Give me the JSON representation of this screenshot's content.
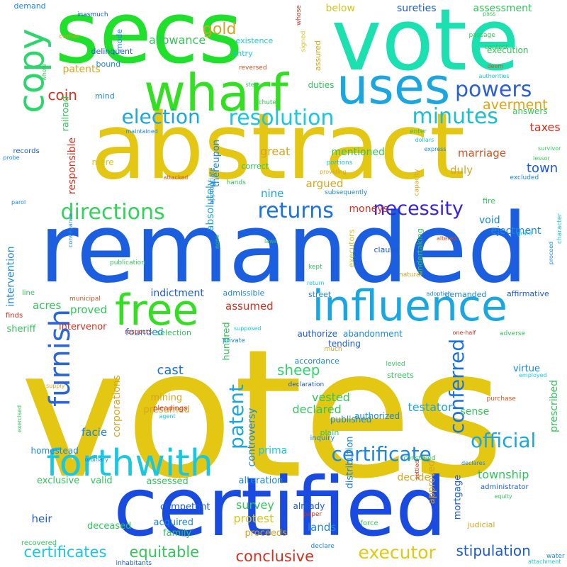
{
  "words": [
    {
      "text": "votes",
      "color": "#e3c713",
      "vertical": false
    },
    {
      "text": "remanded",
      "color": "#1b5fe0",
      "vertical": false
    },
    {
      "text": "abstract",
      "color": "#e3c713",
      "vertical": false
    },
    {
      "text": "certified",
      "color": "#1a4be0",
      "vertical": false
    },
    {
      "text": "vote",
      "color": "#1be0b0",
      "vertical": false
    },
    {
      "text": "secs",
      "color": "#1fe02a",
      "vertical": false
    },
    {
      "text": "wharf",
      "color": "#33e021",
      "vertical": false
    },
    {
      "text": "uses",
      "color": "#1aa6e0",
      "vertical": false
    },
    {
      "text": "influence",
      "color": "#1aa6e0",
      "vertical": false
    },
    {
      "text": "forthwith",
      "color": "#18c7e0",
      "vertical": false
    },
    {
      "text": "free",
      "color": "#33e021",
      "vertical": false
    },
    {
      "text": "copy",
      "color": "#2dd66b",
      "vertical": true
    },
    {
      "text": "furnish",
      "color": "#2a66d8",
      "vertical": true
    },
    {
      "text": "powers",
      "color": "#2a5fd6",
      "vertical": false
    },
    {
      "text": "election",
      "color": "#1aa6e0",
      "vertical": false
    },
    {
      "text": "resolution",
      "color": "#18c7e0",
      "vertical": false
    },
    {
      "text": "minutes",
      "color": "#1ac0ce",
      "vertical": false
    },
    {
      "text": "directions",
      "color": "#33d35a",
      "vertical": false
    },
    {
      "text": "returns",
      "color": "#1a72e0",
      "vertical": false
    },
    {
      "text": "necessity",
      "color": "#3a22d6",
      "vertical": false
    },
    {
      "text": "certificate",
      "color": "#1a86e0",
      "vertical": false
    },
    {
      "text": "conferred",
      "color": "#1a72e0",
      "vertical": true
    },
    {
      "text": "patent",
      "color": "#1aa6e0",
      "vertical": true
    },
    {
      "text": "official",
      "color": "#1aa6e0",
      "vertical": false
    },
    {
      "text": "executor",
      "color": "#e3c713",
      "vertical": false
    },
    {
      "text": "certificates",
      "color": "#18c7e0",
      "vertical": false
    },
    {
      "text": "conclusive",
      "color": "#d62f1e",
      "vertical": false
    },
    {
      "text": "stipulation",
      "color": "#1a5ad6",
      "vertical": false
    },
    {
      "text": "equitable",
      "color": "#33c45a",
      "vertical": false
    },
    {
      "text": "sheep",
      "color": "#2dd66b",
      "vertical": false
    },
    {
      "text": "cast",
      "color": "#1a72e0",
      "vertical": false
    },
    {
      "text": "gold",
      "color": "#d6a51e",
      "vertical": false
    },
    {
      "text": "coin",
      "color": "#d62f1e",
      "vertical": false
    },
    {
      "text": "averment",
      "color": "#e3a313",
      "vertical": false
    },
    {
      "text": "town",
      "color": "#1a5ad6",
      "vertical": false
    },
    {
      "text": "taxes",
      "color": "#d62f1e",
      "vertical": false
    },
    {
      "text": "marriage",
      "color": "#d6521e",
      "vertical": false
    },
    {
      "text": "allowance",
      "color": "#33c45a",
      "vertical": false
    },
    {
      "text": "patents",
      "color": "#d6a51e",
      "vertical": false
    },
    {
      "text": "great",
      "color": "#d6a51e",
      "vertical": false
    },
    {
      "text": "duly",
      "color": "#d6a51e",
      "vertical": false
    },
    {
      "text": "argued",
      "color": "#d6a51e",
      "vertical": false
    },
    {
      "text": "nine",
      "color": "#1aa6e0",
      "vertical": false
    },
    {
      "text": "mentioned",
      "color": "#33c45a",
      "vertical": false
    },
    {
      "text": "indictment",
      "color": "#1a5ad6",
      "vertical": false
    },
    {
      "text": "acres",
      "color": "#33c45a",
      "vertical": false
    },
    {
      "text": "proved",
      "color": "#33c45a",
      "vertical": false
    },
    {
      "text": "assumed",
      "color": "#d62f1e",
      "vertical": false
    },
    {
      "text": "moneys",
      "color": "#d62f1e",
      "vertical": false
    },
    {
      "text": "void",
      "color": "#1a86e0",
      "vertical": false
    },
    {
      "text": "ejectment",
      "color": "#1a86e0",
      "vertical": false
    },
    {
      "text": "township",
      "color": "#2dc45a",
      "vertical": false
    },
    {
      "text": "testator",
      "color": "#1aa6e0",
      "vertical": false
    },
    {
      "text": "declared",
      "color": "#33c45a",
      "vertical": false
    },
    {
      "text": "vested",
      "color": "#33c45a",
      "vertical": false
    },
    {
      "text": "survey",
      "color": "#33c45a",
      "vertical": false
    },
    {
      "text": "protest",
      "color": "#d6c51e",
      "vertical": false
    },
    {
      "text": "lands",
      "color": "#1a86e0",
      "vertical": false
    },
    {
      "text": "heir",
      "color": "#1a5ad6",
      "vertical": false
    },
    {
      "text": "facie",
      "color": "#1a86e0",
      "vertical": false
    },
    {
      "text": "prima",
      "color": "#18c7e0",
      "vertical": false
    },
    {
      "text": "decide",
      "color": "#d6a51e",
      "vertical": false
    },
    {
      "text": "exclusive",
      "color": "#33c45a",
      "vertical": false
    },
    {
      "text": "assessed",
      "color": "#33c45a",
      "vertical": false
    },
    {
      "text": "acquired",
      "color": "#1a86e0",
      "vertical": false
    },
    {
      "text": "proceeds",
      "color": "#d6a51e",
      "vertical": false
    },
    {
      "text": "family",
      "color": "#33c45a",
      "vertical": false
    },
    {
      "text": "sense",
      "color": "#33c45a",
      "vertical": false
    },
    {
      "text": "prescribed",
      "color": "#33c45a",
      "vertical": true
    },
    {
      "text": "controversy",
      "color": "#1a86e0",
      "vertical": true
    },
    {
      "text": "intervention",
      "color": "#1a86e0",
      "vertical": true
    },
    {
      "text": "responsible",
      "color": "#d62f1e",
      "vertical": true
    },
    {
      "text": "absolutely",
      "color": "#1aa6e0",
      "vertical": true
    },
    {
      "text": "corporations",
      "color": "#d6a51e",
      "vertical": true
    },
    {
      "text": "distribution",
      "color": "#1a86e0",
      "vertical": true
    },
    {
      "text": "approved",
      "color": "#d6a51e",
      "vertical": true
    },
    {
      "text": "hundred",
      "color": "#33c45a",
      "vertical": true
    },
    {
      "text": "mining",
      "color": "#d6a51e",
      "vertical": false
    },
    {
      "text": "presumed",
      "color": "#d6a51e",
      "vertical": false
    },
    {
      "text": "authorize",
      "color": "#1a5ad6",
      "vertical": false
    },
    {
      "text": "abandonment",
      "color": "#1a86e0",
      "vertical": false
    },
    {
      "text": "published",
      "color": "#1a86e0",
      "vertical": false
    },
    {
      "text": "authorized",
      "color": "#1a86e0",
      "vertical": false
    },
    {
      "text": "virtue",
      "color": "#1a86e0",
      "vertical": false
    },
    {
      "text": "sureties",
      "color": "#1a5ad6",
      "vertical": false
    },
    {
      "text": "assessment",
      "color": "#33c45a",
      "vertical": false
    },
    {
      "text": "below",
      "color": "#d6c51e",
      "vertical": false
    },
    {
      "text": "execution",
      "color": "#33c45a",
      "vertical": false
    },
    {
      "text": "answers",
      "color": "#33c45a",
      "vertical": false
    },
    {
      "text": "duties",
      "color": "#33c45a",
      "vertical": false
    },
    {
      "text": "existence",
      "color": "#18c7e0",
      "vertical": false
    },
    {
      "text": "entry",
      "color": "#18c7e0",
      "vertical": false
    },
    {
      "text": "demand",
      "color": "#1a86e0",
      "vertical": false
    },
    {
      "text": "inasmuch",
      "color": "#1a5ad6",
      "vertical": false
    },
    {
      "text": "corner",
      "color": "#d6a51e",
      "vertical": false
    },
    {
      "text": "railroad",
      "color": "#33c45a",
      "vertical": true
    },
    {
      "text": "delinquent",
      "color": "#1a5ad6",
      "vertical": false
    },
    {
      "text": "bound",
      "color": "#1a86e0",
      "vertical": false
    },
    {
      "text": "mind",
      "color": "#1a86e0",
      "vertical": false
    },
    {
      "text": "mode",
      "color": "#1a86e0",
      "vertical": true
    },
    {
      "text": "whose",
      "color": "#d62f1e",
      "vertical": true
    },
    {
      "text": "signed",
      "color": "#d6c51e",
      "vertical": true
    },
    {
      "text": "assured",
      "color": "#d6a51e",
      "vertical": true
    },
    {
      "text": "pass",
      "color": "#33c45a",
      "vertical": false
    },
    {
      "text": "passage",
      "color": "#33c45a",
      "vertical": false
    },
    {
      "text": "contest",
      "color": "#33c45a",
      "vertical": false
    },
    {
      "text": "deem",
      "color": "#d6521e",
      "vertical": false
    },
    {
      "text": "authorities",
      "color": "#18c7e0",
      "vertical": false
    },
    {
      "text": "reversed",
      "color": "#d6521e",
      "vertical": false
    },
    {
      "text": "steps",
      "color": "#33c45a",
      "vertical": false
    },
    {
      "text": "chute",
      "color": "#33c45a",
      "vertical": false
    },
    {
      "text": "whole",
      "color": "#33c45a",
      "vertical": true
    },
    {
      "text": "maintained",
      "color": "#1a86e0",
      "vertical": false
    },
    {
      "text": "records",
      "color": "#1a5ad6",
      "vertical": false
    },
    {
      "text": "probe",
      "color": "#1a86e0",
      "vertical": false
    },
    {
      "text": "express",
      "color": "#1a86e0",
      "vertical": false
    },
    {
      "text": "mere",
      "color": "#d6c51e",
      "vertical": false
    },
    {
      "text": "thereupon",
      "color": "#1a86e0",
      "vertical": true
    },
    {
      "text": "attacked",
      "color": "#d6521e",
      "vertical": false
    },
    {
      "text": "appropriate",
      "color": "#1a86e0",
      "vertical": true
    },
    {
      "text": "correct",
      "color": "#33c45a",
      "vertical": false
    },
    {
      "text": "portions",
      "color": "#18c7e0",
      "vertical": false
    },
    {
      "text": "providing",
      "color": "#d6a51e",
      "vertical": false
    },
    {
      "text": "hands",
      "color": "#33c45a",
      "vertical": false
    },
    {
      "text": "subsequently",
      "color": "#1a86e0",
      "vertical": false
    },
    {
      "text": "capacity",
      "color": "#d6a51e",
      "vertical": true
    },
    {
      "text": "enter",
      "color": "#33c45a",
      "vertical": false
    },
    {
      "text": "dollars",
      "color": "#18c7e0",
      "vertical": false
    },
    {
      "text": "survivor",
      "color": "#33c45a",
      "vertical": false
    },
    {
      "text": "lessor",
      "color": "#33c45a",
      "vertical": false
    },
    {
      "text": "excluded",
      "color": "#1a86e0",
      "vertical": false
    },
    {
      "text": "fire",
      "color": "#33c45a",
      "vertical": false
    },
    {
      "text": "character",
      "color": "#18c7e0",
      "vertical": true
    },
    {
      "text": "altered",
      "color": "#d6521e",
      "vertical": false
    },
    {
      "text": "grant",
      "color": "#18c7e0",
      "vertical": false
    },
    {
      "text": "proceed",
      "color": "#1a86e0",
      "vertical": true
    },
    {
      "text": "parol",
      "color": "#1a86e0",
      "vertical": false
    },
    {
      "text": "conveyance",
      "color": "#1a86e0",
      "vertical": true
    },
    {
      "text": "none",
      "color": "#33c45a",
      "vertical": true
    },
    {
      "text": "laws",
      "color": "#33c45a",
      "vertical": false
    },
    {
      "text": "clause",
      "color": "#1a5ad6",
      "vertical": false
    },
    {
      "text": "undertaking",
      "color": "#33c45a",
      "vertical": true
    },
    {
      "text": "executors",
      "color": "#d6c51e",
      "vertical": true
    },
    {
      "text": "publication",
      "color": "#33c45a",
      "vertical": false
    },
    {
      "text": "kept",
      "color": "#33c45a",
      "vertical": false
    },
    {
      "text": "natural",
      "color": "#d6a51e",
      "vertical": false
    },
    {
      "text": "adoption",
      "color": "#1a86e0",
      "vertical": false
    },
    {
      "text": "affirmative",
      "color": "#1a5ad6",
      "vertical": false
    },
    {
      "text": "line",
      "color": "#33c45a",
      "vertical": false
    },
    {
      "text": "municipal",
      "color": "#d6521e",
      "vertical": false
    },
    {
      "text": "admissible",
      "color": "#1a86e0",
      "vertical": false
    },
    {
      "text": "street",
      "color": "#1a86e0",
      "vertical": false
    },
    {
      "text": "return",
      "color": "#18c7e0",
      "vertical": false
    },
    {
      "text": "finds",
      "color": "#d62f1e",
      "vertical": false
    },
    {
      "text": "demanded",
      "color": "#1a86e0",
      "vertical": false
    },
    {
      "text": "sheriff",
      "color": "#33c45a",
      "vertical": false
    },
    {
      "text": "intervenor",
      "color": "#d62f1e",
      "vertical": false
    },
    {
      "text": "founded",
      "color": "#1a86e0",
      "vertical": false
    },
    {
      "text": "respects",
      "color": "#d62f1e",
      "vertical": false
    },
    {
      "text": "selection",
      "color": "#33c45a",
      "vertical": false
    },
    {
      "text": "private",
      "color": "#1a86e0",
      "vertical": false
    },
    {
      "text": "supposed",
      "color": "#18c7e0",
      "vertical": false
    },
    {
      "text": "much",
      "color": "#d6a51e",
      "vertical": false
    },
    {
      "text": "tending",
      "color": "#1a5ad6",
      "vertical": false
    },
    {
      "text": "accordance",
      "color": "#1a86e0",
      "vertical": false
    },
    {
      "text": "one-half",
      "color": "#d62f1e",
      "vertical": false
    },
    {
      "text": "adverse",
      "color": "#33c45a",
      "vertical": false
    },
    {
      "text": "levied",
      "color": "#33c45a",
      "vertical": false
    },
    {
      "text": "employed",
      "color": "#18c7e0",
      "vertical": false
    },
    {
      "text": "streets",
      "color": "#33c45a",
      "vertical": false
    },
    {
      "text": "declaration",
      "color": "#1a5ad6",
      "vertical": false
    },
    {
      "text": "supply",
      "color": "#d6a51e",
      "vertical": false
    },
    {
      "text": "pleadings",
      "color": "#d62f1e",
      "vertical": false
    },
    {
      "text": "agent",
      "color": "#18c7e0",
      "vertical": false
    },
    {
      "text": "purchase",
      "color": "#d6521e",
      "vertical": false
    },
    {
      "text": "exercised",
      "color": "#33c45a",
      "vertical": true
    },
    {
      "text": "plain",
      "color": "#33c45a",
      "vertical": false
    },
    {
      "text": "inquiry",
      "color": "#1a86e0",
      "vertical": false
    },
    {
      "text": "homestead",
      "color": "#1a86e0",
      "vertical": false
    },
    {
      "text": "ordinary",
      "color": "#1a86e0",
      "vertical": false
    },
    {
      "text": "construed",
      "color": "#33c45a",
      "vertical": false
    },
    {
      "text": "declares",
      "color": "#1a86e0",
      "vertical": false
    },
    {
      "text": "settled",
      "color": "#d62f1e",
      "vertical": true
    },
    {
      "text": "administrator",
      "color": "#1a5ad6",
      "vertical": false
    },
    {
      "text": "equity",
      "color": "#33c45a",
      "vertical": false
    },
    {
      "text": "valid",
      "color": "#33c45a",
      "vertical": false
    },
    {
      "text": "alteration",
      "color": "#1a86e0",
      "vertical": false
    },
    {
      "text": "competent",
      "color": "#1a5ad6",
      "vertical": false
    },
    {
      "text": "mortgage",
      "color": "#1a5ad6",
      "vertical": true
    },
    {
      "text": "already",
      "color": "#1a5ad6",
      "vertical": false
    },
    {
      "text": "paper",
      "color": "#d62f1e",
      "vertical": false
    },
    {
      "text": "deceased",
      "color": "#33c45a",
      "vertical": false
    },
    {
      "text": "recovered",
      "color": "#33c45a",
      "vertical": false
    },
    {
      "text": "force",
      "color": "#33c45a",
      "vertical": false
    },
    {
      "text": "judicial",
      "color": "#d6a51e",
      "vertical": false
    },
    {
      "text": "declare",
      "color": "#1a86e0",
      "vertical": false
    },
    {
      "text": "inhabitants",
      "color": "#1a5ad6",
      "vertical": false
    },
    {
      "text": "water",
      "color": "#1a86e0",
      "vertical": false
    },
    {
      "text": "attachment",
      "color": "#18c7e0",
      "vertical": false
    }
  ]
}
